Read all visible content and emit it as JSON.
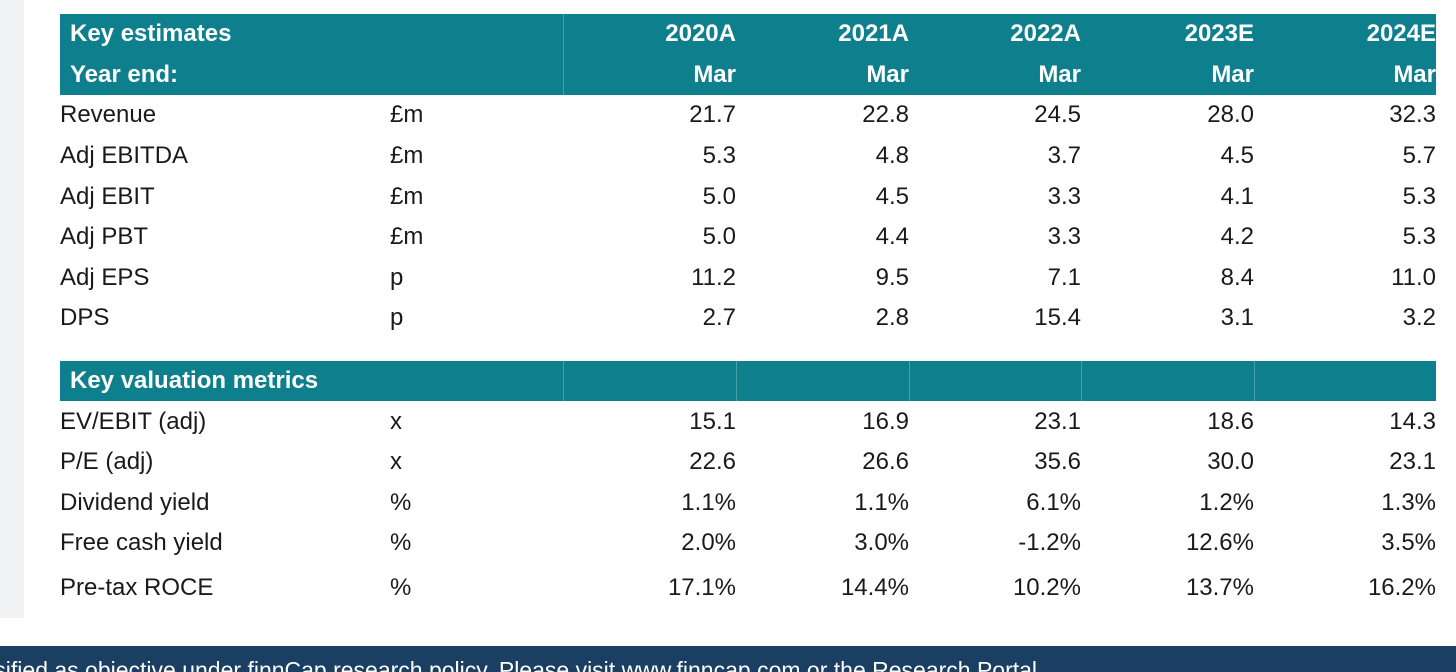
{
  "estimates": {
    "title": "Key estimates",
    "year_end_label": "Year end:",
    "years": [
      "2020A",
      "2021A",
      "2022A",
      "2023E",
      "2024E"
    ],
    "months": [
      "Mar",
      "Mar",
      "Mar",
      "Mar",
      "Mar"
    ],
    "rows": [
      {
        "label": "Revenue",
        "unit": "£m",
        "values": [
          "21.7",
          "22.8",
          "24.5",
          "28.0",
          "32.3"
        ]
      },
      {
        "label": "Adj EBITDA",
        "unit": "£m",
        "values": [
          "5.3",
          "4.8",
          "3.7",
          "4.5",
          "5.7"
        ]
      },
      {
        "label": "Adj EBIT",
        "unit": "£m",
        "values": [
          "5.0",
          "4.5",
          "3.3",
          "4.1",
          "5.3"
        ]
      },
      {
        "label": "Adj PBT",
        "unit": "£m",
        "values": [
          "5.0",
          "4.4",
          "3.3",
          "4.2",
          "5.3"
        ]
      },
      {
        "label": "Adj EPS",
        "unit": "p",
        "values": [
          "11.2",
          "9.5",
          "7.1",
          "8.4",
          "11.0"
        ]
      },
      {
        "label": "DPS",
        "unit": "p",
        "values": [
          "2.7",
          "2.8",
          "15.4",
          "3.1",
          "3.2"
        ]
      }
    ]
  },
  "valuation": {
    "title": "Key valuation metrics",
    "rows": [
      {
        "label": "EV/EBIT (adj)",
        "unit": "x",
        "values": [
          "15.1",
          "16.9",
          "23.1",
          "18.6",
          "14.3"
        ]
      },
      {
        "label": "P/E (adj)",
        "unit": "x",
        "values": [
          "22.6",
          "26.6",
          "35.6",
          "30.0",
          "23.1"
        ]
      },
      {
        "label": "Dividend yield",
        "unit": "%",
        "values": [
          "1.1%",
          "1.1%",
          "6.1%",
          "1.2%",
          "1.3%"
        ]
      },
      {
        "label": "Free cash yield",
        "unit": "%",
        "values": [
          "2.0%",
          "3.0%",
          "-1.2%",
          "12.6%",
          "3.5%"
        ]
      },
      {
        "label": "Pre-tax ROCE",
        "unit": "%",
        "values": [
          "17.1%",
          "14.4%",
          "10.2%",
          "13.7%",
          "16.2%"
        ]
      }
    ]
  },
  "footer": {
    "text": "assified as objective under finnCap research policy. Please visit www.finncap.com or the Research Portal"
  },
  "colors": {
    "header_bg": "#0e7f8c",
    "footer_bg": "#1a3f63"
  }
}
